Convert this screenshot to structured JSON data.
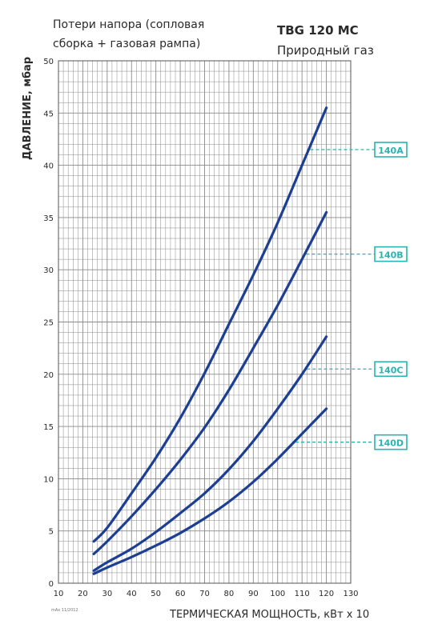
{
  "header": {
    "caption_line1": "Потери напора (сопловая",
    "caption_line2": "сборка + газовая рампа)",
    "model": "TBG 120 MC",
    "fuel": "Природный газ"
  },
  "footer": {
    "code": "mAx 11/2012"
  },
  "colors": {
    "curve": "#1c3f94",
    "grid": "#8a8a8a",
    "callout": "#2bb3b3",
    "text": "#2a2a2a"
  },
  "chart_data": {
    "type": "line",
    "ylabel": "ДАВЛЕНИЕ, мбар",
    "xlabel": "ТЕРМИЧЕСКАЯ МОЩНОСТЬ, кВт x 10",
    "xlim": [
      10,
      130
    ],
    "ylim": [
      0,
      50
    ],
    "xticks": [
      10,
      20,
      30,
      40,
      50,
      60,
      70,
      80,
      90,
      100,
      110,
      120,
      130
    ],
    "yticks": [
      0,
      5,
      10,
      15,
      20,
      25,
      30,
      35,
      40,
      45,
      50
    ],
    "grid": true,
    "series": [
      {
        "name": "140A",
        "x": [
          24.5,
          30,
          40,
          50,
          60,
          70,
          80,
          90,
          100,
          110,
          120
        ],
        "y": [
          4.0,
          5.3,
          8.6,
          12.0,
          15.8,
          20.1,
          24.8,
          29.5,
          34.5,
          40.0,
          45.5
        ]
      },
      {
        "name": "140B",
        "x": [
          24.5,
          30,
          40,
          50,
          60,
          70,
          80,
          90,
          100,
          110,
          120
        ],
        "y": [
          2.8,
          4.0,
          6.4,
          9.0,
          11.8,
          14.9,
          18.5,
          22.5,
          26.6,
          31.0,
          35.5
        ]
      },
      {
        "name": "140C",
        "x": [
          24.5,
          30,
          40,
          50,
          60,
          70,
          80,
          90,
          100,
          110,
          120
        ],
        "y": [
          1.2,
          2.0,
          3.3,
          4.9,
          6.7,
          8.6,
          10.9,
          13.6,
          16.7,
          20.0,
          23.6
        ]
      },
      {
        "name": "140D",
        "x": [
          24.5,
          30,
          40,
          50,
          60,
          70,
          80,
          90,
          100,
          110,
          120
        ],
        "y": [
          0.9,
          1.5,
          2.5,
          3.6,
          4.8,
          6.2,
          7.8,
          9.7,
          11.9,
          14.3,
          16.7
        ]
      }
    ],
    "callouts": [
      {
        "label": "140A",
        "value": 41.5
      },
      {
        "label": "140B",
        "value": 31.5
      },
      {
        "label": "140C",
        "value": 20.5
      },
      {
        "label": "140D",
        "value": 13.5
      }
    ]
  }
}
